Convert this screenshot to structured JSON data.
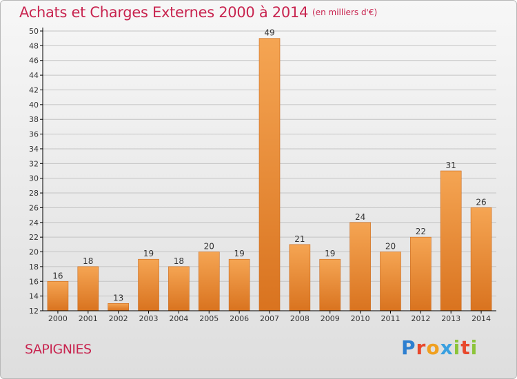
{
  "title": "Achats et Charges Externes 2000 à 2014",
  "title_unit": "(en milliers d'€)",
  "commune": "SAPIGNIES",
  "logo": {
    "text": "Proxiti",
    "letters": [
      {
        "ch": "P",
        "color": "#2d7fd0"
      },
      {
        "ch": "r",
        "color": "#e8482c"
      },
      {
        "ch": "o",
        "color": "#f0a020"
      },
      {
        "ch": "x",
        "color": "#3aa0e0"
      },
      {
        "ch": "i",
        "color": "#8cc43a"
      },
      {
        "ch": "t",
        "color": "#e8482c"
      },
      {
        "ch": "i",
        "color": "#8cc43a"
      }
    ]
  },
  "colors": {
    "title": "#c8244f",
    "bar_light": "#f5a553",
    "bar_dark": "#d9731f",
    "axis": "#000000",
    "grid": "#c4c4c4"
  },
  "chart_data": {
    "type": "bar",
    "categories": [
      "2000",
      "2001",
      "2002",
      "2003",
      "2004",
      "2005",
      "2006",
      "2007",
      "2008",
      "2009",
      "2010",
      "2011",
      "2012",
      "2013",
      "2014"
    ],
    "values": [
      16,
      18,
      13,
      19,
      18,
      20,
      19,
      49,
      21,
      19,
      24,
      20,
      22,
      31,
      26
    ],
    "title": "Achats et Charges Externes 2000 à 2014",
    "xlabel": "",
    "ylabel": "",
    "ylim": [
      12,
      50
    ],
    "yticks": [
      12,
      14,
      16,
      18,
      20,
      22,
      24,
      26,
      28,
      30,
      32,
      34,
      36,
      38,
      40,
      42,
      44,
      46,
      48,
      50
    ],
    "grid": true,
    "legend": "none"
  }
}
